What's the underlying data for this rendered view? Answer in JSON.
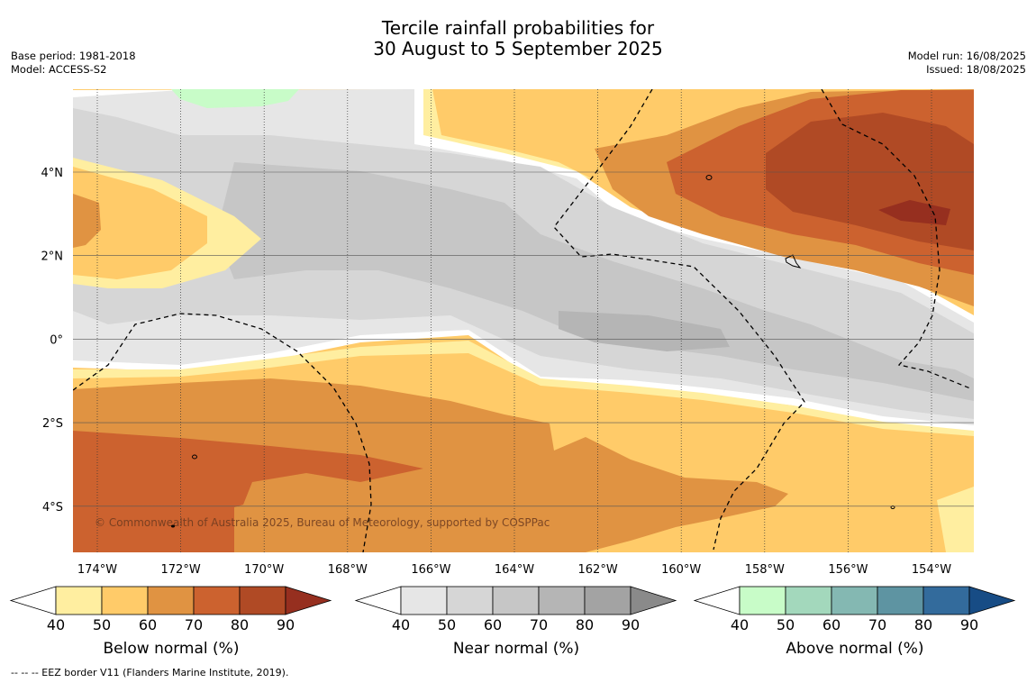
{
  "header": {
    "title_line1": "Tercile rainfall probabilities for",
    "title_line2": "30 August to 5 September 2025",
    "base_period": "Base period: 1981-2018",
    "model": "Model: ACCESS-S2",
    "model_run": "Model run: 16/08/2025",
    "issued": "Issued: 18/08/2025"
  },
  "map": {
    "lon_ticks": [
      "174°W",
      "172°W",
      "170°W",
      "168°W",
      "166°W",
      "164°W",
      "162°W",
      "160°W",
      "158°W",
      "156°W",
      "154°W"
    ],
    "lat_ticks": [
      "4°N",
      "2°N",
      "0°",
      "2°S",
      "4°S"
    ],
    "copyright": "© Commonwealth of Australia 2025, Bureau of Meteorology, supported by COSPPac",
    "colors": {
      "below": [
        "#ffeea0",
        "#ffcb69",
        "#e09342",
        "#cc622f",
        "#b04a25",
        "#962f1f"
      ],
      "near": [
        "#e6e6e6",
        "#d6d6d6",
        "#c6c6c6",
        "#b5b5b5",
        "#a3a3a3",
        "#8a8a8a"
      ],
      "above": [
        "#c8fcc8",
        "#a3d8bc",
        "#84b8b2",
        "#5e94a2",
        "#336b9c",
        "#174c85"
      ]
    }
  },
  "colorbars": {
    "ticks": [
      "40",
      "50",
      "60",
      "70",
      "80",
      "90"
    ],
    "below_label": "Below normal (%)",
    "near_label": "Near normal (%)",
    "above_label": "Above normal (%)"
  },
  "footnote": "--  --  -- EEZ border V11 (Flanders Marine Institute, 2019)."
}
